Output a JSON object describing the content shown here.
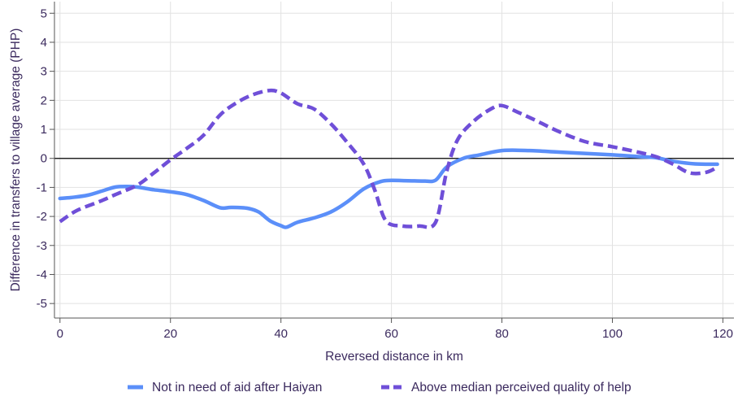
{
  "chart_data": {
    "type": "line",
    "title": "",
    "xlabel": "Reversed distance in km",
    "ylabel": "Difference in transfers to village average (PHP)",
    "xlim": [
      -1,
      122
    ],
    "ylim": [
      -5.5,
      5.4
    ],
    "x_ticks": [
      0,
      20,
      40,
      60,
      80,
      100,
      120
    ],
    "y_ticks": [
      5,
      4,
      3,
      2,
      1,
      0,
      -1,
      -2,
      -3,
      -4,
      -5
    ],
    "grid": true,
    "zero_line": true,
    "legend_position": "bottom",
    "series": [
      {
        "name": "Not in need of aid after Haiyan",
        "style": "solid",
        "color": "#5b8ff9",
        "x": [
          0,
          2,
          5,
          8,
          10,
          12,
          14,
          17,
          20,
          23,
          26,
          29,
          31,
          34,
          36,
          38,
          40,
          41,
          43,
          46,
          49,
          52,
          55,
          58,
          60,
          63,
          66,
          68,
          70,
          73,
          76,
          80,
          85,
          90,
          95,
          100,
          105,
          108,
          111,
          115,
          119
        ],
        "y": [
          -1.38,
          -1.35,
          -1.27,
          -1.1,
          -0.99,
          -0.97,
          -0.99,
          -1.08,
          -1.15,
          -1.25,
          -1.45,
          -1.7,
          -1.69,
          -1.72,
          -1.85,
          -2.15,
          -2.32,
          -2.37,
          -2.2,
          -2.05,
          -1.85,
          -1.5,
          -1.05,
          -0.8,
          -0.76,
          -0.77,
          -0.78,
          -0.75,
          -0.3,
          0.0,
          0.12,
          0.27,
          0.27,
          0.22,
          0.17,
          0.12,
          0.06,
          0.02,
          -0.1,
          -0.19,
          -0.2
        ]
      },
      {
        "name": "Above median perceived quality of help",
        "style": "dashed",
        "color": "#6f4fd8",
        "x": [
          0,
          3,
          7,
          10,
          14,
          17,
          20,
          23,
          26,
          29,
          32,
          35,
          38,
          40,
          43,
          46,
          49,
          52,
          55,
          57,
          59,
          62,
          65,
          68,
          70,
          72,
          75,
          78,
          80,
          83,
          86,
          90,
          95,
          100,
          105,
          108,
          111,
          114,
          117,
          119
        ],
        "y": [
          -2.18,
          -1.8,
          -1.5,
          -1.25,
          -0.92,
          -0.5,
          -0.05,
          0.35,
          0.8,
          1.5,
          1.92,
          2.2,
          2.34,
          2.25,
          1.88,
          1.7,
          1.2,
          0.55,
          -0.2,
          -1.1,
          -2.15,
          -2.33,
          -2.33,
          -2.2,
          -0.45,
          0.65,
          1.3,
          1.7,
          1.82,
          1.58,
          1.32,
          0.95,
          0.58,
          0.4,
          0.2,
          0.05,
          -0.2,
          -0.5,
          -0.48,
          -0.3
        ]
      }
    ]
  }
}
